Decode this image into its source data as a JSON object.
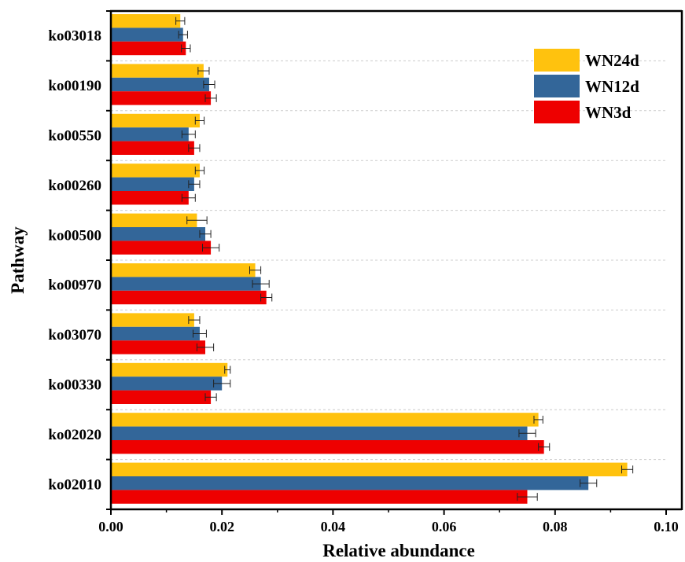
{
  "chart_data": {
    "type": "bar",
    "orientation": "horizontal",
    "xlabel": "Relative abundance",
    "ylabel": "Pathway",
    "xlim": [
      0,
      0.1
    ],
    "x_ticks": [
      "0.00",
      "0.02",
      "0.04",
      "0.06",
      "0.08",
      "0.10"
    ],
    "grid": "horizontal dashed between categories",
    "legend_position": "top-right",
    "categories": [
      "ko03018",
      "ko00190",
      "ko00550",
      "ko00260",
      "ko00500",
      "ko00970",
      "ko03070",
      "ko00330",
      "ko02020",
      "ko02010"
    ],
    "series": [
      {
        "name": "WN24d",
        "color": "#FFC20E",
        "values": [
          0.0125,
          0.0167,
          0.016,
          0.016,
          0.0155,
          0.026,
          0.015,
          0.021,
          0.077,
          0.093
        ],
        "errors": [
          0.0008,
          0.001,
          0.0008,
          0.0008,
          0.0018,
          0.001,
          0.001,
          0.0005,
          0.0008,
          0.001
        ]
      },
      {
        "name": "WN12d",
        "color": "#336699",
        "values": [
          0.013,
          0.0177,
          0.014,
          0.015,
          0.017,
          0.027,
          0.016,
          0.02,
          0.075,
          0.086
        ],
        "errors": [
          0.0008,
          0.001,
          0.0012,
          0.001,
          0.001,
          0.0015,
          0.0012,
          0.0015,
          0.0015,
          0.0015
        ]
      },
      {
        "name": "WN3d",
        "color": "#EE0000",
        "values": [
          0.0135,
          0.018,
          0.015,
          0.014,
          0.018,
          0.028,
          0.017,
          0.018,
          0.078,
          0.075
        ],
        "errors": [
          0.0008,
          0.001,
          0.001,
          0.0012,
          0.0015,
          0.001,
          0.0015,
          0.001,
          0.001,
          0.0018
        ]
      }
    ]
  }
}
